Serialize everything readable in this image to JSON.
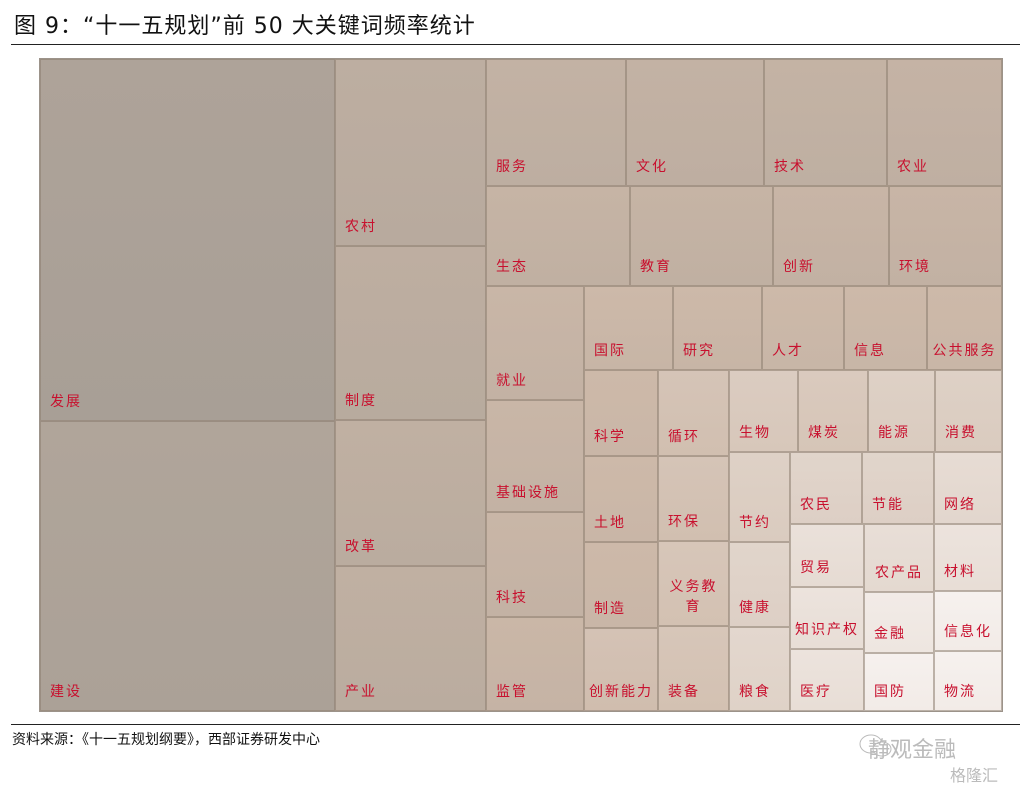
{
  "title": "图 9：“十一五规划”前 50 大关键词频率统计",
  "source": "资料来源：《十一五规划纲要》，西部证券研发中心",
  "watermark": {
    "primary": "静观金融",
    "secondary": "格隆汇"
  },
  "colors": {
    "label": "#c8102e",
    "largest_tile": "#a89f96",
    "mid_tile": "#cdb9a9",
    "smallest_tile": "#f6f1ee"
  },
  "chart_data": {
    "type": "treemap",
    "title": "图 9：“十一五规划”前 50 大关键词频率统计",
    "value_note": "relative size estimated from tile area (发展 = 100)",
    "items": [
      {
        "label": "发展",
        "value": 100
      },
      {
        "label": "建设",
        "value": 80
      },
      {
        "label": "农村",
        "value": 26
      },
      {
        "label": "制度",
        "value": 25
      },
      {
        "label": "改革",
        "value": 21
      },
      {
        "label": "产业",
        "value": 21
      },
      {
        "label": "服务",
        "value": 17
      },
      {
        "label": "文化",
        "value": 16
      },
      {
        "label": "技术",
        "value": 15
      },
      {
        "label": "农业",
        "value": 14
      },
      {
        "label": "生态",
        "value": 13
      },
      {
        "label": "教育",
        "value": 13
      },
      {
        "label": "创新",
        "value": 11
      },
      {
        "label": "环境",
        "value": 11
      },
      {
        "label": "就业",
        "value": 10
      },
      {
        "label": "基础设施",
        "value": 10
      },
      {
        "label": "科技",
        "value": 10
      },
      {
        "label": "监管",
        "value": 9
      },
      {
        "label": "国际",
        "value": 7
      },
      {
        "label": "研究",
        "value": 7
      },
      {
        "label": "人才",
        "value": 6.5
      },
      {
        "label": "信息",
        "value": 6.5
      },
      {
        "label": "公共服务",
        "value": 6
      },
      {
        "label": "科学",
        "value": 6
      },
      {
        "label": "土地",
        "value": 6
      },
      {
        "label": "制造",
        "value": 6
      },
      {
        "label": "创新能力",
        "value": 5.8
      },
      {
        "label": "循环",
        "value": 5.7
      },
      {
        "label": "环保",
        "value": 5.7
      },
      {
        "label": "义务教育",
        "value": 5.6
      },
      {
        "label": "装备",
        "value": 5.6
      },
      {
        "label": "生物",
        "value": 5.3
      },
      {
        "label": "煤炭",
        "value": 5.4
      },
      {
        "label": "能源",
        "value": 5.1
      },
      {
        "label": "消费",
        "value": 5.1
      },
      {
        "label": "节约",
        "value": 5.1
      },
      {
        "label": "健康",
        "value": 4.9
      },
      {
        "label": "粮食",
        "value": 4.8
      },
      {
        "label": "农民",
        "value": 4.9
      },
      {
        "label": "节能",
        "value": 4.9
      },
      {
        "label": "网络",
        "value": 4.6
      },
      {
        "label": "贸易",
        "value": 4.4
      },
      {
        "label": "知识产权",
        "value": 4.3
      },
      {
        "label": "医疗",
        "value": 4.3
      },
      {
        "label": "农产品",
        "value": 4.5
      },
      {
        "label": "金融",
        "value": 4.0
      },
      {
        "label": "国防",
        "value": 3.8
      },
      {
        "label": "材料",
        "value": 4.3
      },
      {
        "label": "信息化",
        "value": 3.8
      },
      {
        "label": "物流",
        "value": 3.8
      }
    ]
  }
}
